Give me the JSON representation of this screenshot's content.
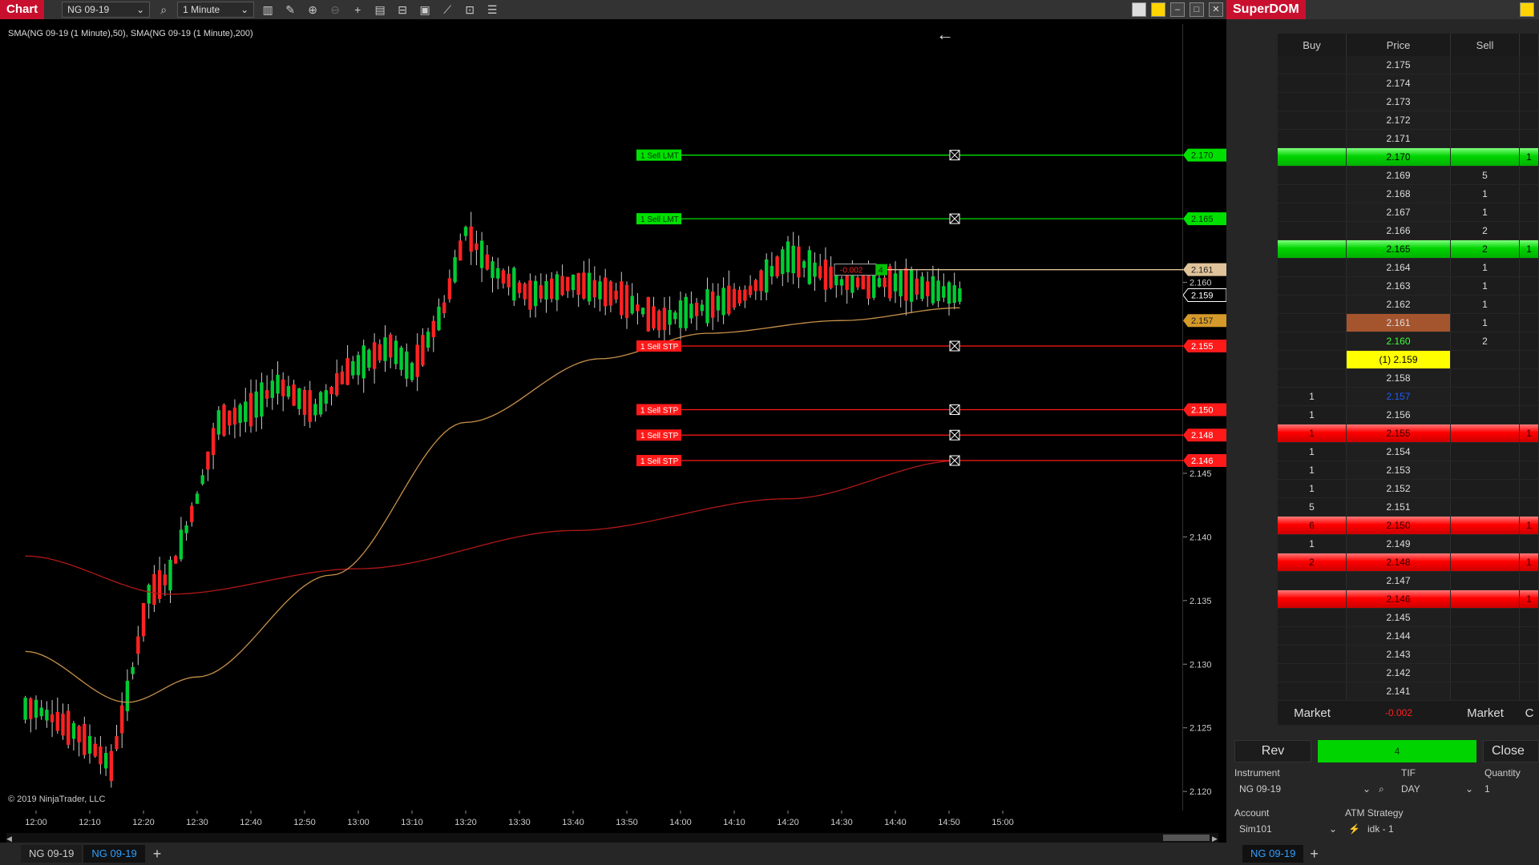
{
  "chart_window": {
    "title": "Chart",
    "instrument": "NG 09-19",
    "interval": "1 Minute",
    "indicator_label": "SMA(NG 09-19 (1 Minute),50), SMA(NG 09-19 (1 Minute),200)",
    "copyright": "© 2019 NinjaTrader, LLC",
    "tabs": [
      "NG 09-19",
      "NG 09-19"
    ],
    "tab_add": "+",
    "back_arrow": "←",
    "toolbar_icons": [
      "search-icon",
      "bar-chart-icon",
      "draw-icon",
      "zoom-in-icon",
      "zoom-out-icon",
      "crosshair-icon",
      "properties-icon",
      "template-icon",
      "data-box-icon",
      "strategy-icon",
      "indicator-icon",
      "list-icon"
    ]
  },
  "chart_data": {
    "type": "candlestick",
    "x_ticks": [
      "12:00",
      "12:10",
      "12:20",
      "12:30",
      "12:40",
      "12:50",
      "13:00",
      "13:10",
      "13:20",
      "13:30",
      "13:40",
      "13:50",
      "14:00",
      "14:10",
      "14:20",
      "14:30",
      "14:40",
      "14:50",
      "15:00"
    ],
    "y_ticks": [
      2.12,
      2.125,
      2.13,
      2.135,
      2.14,
      2.145,
      2.16
    ],
    "ylim": [
      2.1185,
      2.1803
    ],
    "up_color": "#00cc33",
    "down_color": "#ff2222",
    "sma50_color": "#c8914a",
    "sma200_color": "#b01818",
    "current_price": 2.159,
    "order_lines": [
      {
        "label": "1  Sell LMT",
        "price": "2.170",
        "color": "#00e000"
      },
      {
        "label": "1  Sell LMT",
        "price": "2.165",
        "color": "#00e000"
      },
      {
        "label": "1  Sell STP",
        "price": "2.155",
        "color": "#ff1a1a"
      },
      {
        "label": "1  Sell STP",
        "price": "2.150",
        "color": "#ff1a1a"
      },
      {
        "label": "1  Sell STP",
        "price": "2.148",
        "color": "#ff1a1a"
      },
      {
        "label": "1  Sell STP",
        "price": "2.146",
        "color": "#ff1a1a"
      }
    ],
    "position_line": {
      "pnl": "-0.002",
      "qty": "4",
      "price": "2.161",
      "color": "#e0c39a"
    },
    "price_labels": [
      {
        "price": "2.159",
        "kind": "last"
      },
      {
        "price": "2.157",
        "kind": "sma50"
      }
    ]
  },
  "superdom": {
    "title": "SuperDOM",
    "headers": {
      "buy": "Buy",
      "price": "Price",
      "sell": "Sell"
    },
    "rows": [
      {
        "buy": "",
        "price": "2.175",
        "sell": "",
        "style": ""
      },
      {
        "buy": "",
        "price": "2.174",
        "sell": "",
        "style": ""
      },
      {
        "buy": "",
        "price": "2.173",
        "sell": "",
        "style": ""
      },
      {
        "buy": "",
        "price": "2.172",
        "sell": "",
        "style": ""
      },
      {
        "buy": "",
        "price": "2.171",
        "sell": "",
        "style": ""
      },
      {
        "buy": "",
        "price": "2.170",
        "sell": "",
        "extra": "1",
        "style": "green"
      },
      {
        "buy": "",
        "price": "2.169",
        "sell": "5",
        "style": ""
      },
      {
        "buy": "",
        "price": "2.168",
        "sell": "1",
        "style": ""
      },
      {
        "buy": "",
        "price": "2.167",
        "sell": "1",
        "style": ""
      },
      {
        "buy": "",
        "price": "2.166",
        "sell": "2",
        "style": ""
      },
      {
        "buy": "",
        "price": "2.165",
        "sell": "2",
        "extra": "1",
        "style": "green"
      },
      {
        "buy": "",
        "price": "2.164",
        "sell": "1",
        "style": ""
      },
      {
        "buy": "",
        "price": "2.163",
        "sell": "1",
        "style": ""
      },
      {
        "buy": "",
        "price": "2.162",
        "sell": "1",
        "style": ""
      },
      {
        "buy": "",
        "price": "2.161",
        "sell": "1",
        "style": "brown"
      },
      {
        "buy": "",
        "price": "2.160",
        "sell": "2",
        "style": "txt-green"
      },
      {
        "buy": "",
        "price": "(1) 2.159",
        "sell": "",
        "style": "yellow"
      },
      {
        "buy": "",
        "price": "2.158",
        "sell": "",
        "style": ""
      },
      {
        "buy": "1",
        "price": "2.157",
        "sell": "",
        "style": "txt-blue"
      },
      {
        "buy": "1",
        "price": "2.156",
        "sell": "",
        "style": ""
      },
      {
        "buy": "1",
        "price": "2.155",
        "sell": "",
        "extra": "1",
        "style": "red"
      },
      {
        "buy": "1",
        "price": "2.154",
        "sell": "",
        "style": ""
      },
      {
        "buy": "1",
        "price": "2.153",
        "sell": "",
        "style": ""
      },
      {
        "buy": "1",
        "price": "2.152",
        "sell": "",
        "style": ""
      },
      {
        "buy": "5",
        "price": "2.151",
        "sell": "",
        "style": ""
      },
      {
        "buy": "6",
        "price": "2.150",
        "sell": "",
        "extra": "1",
        "style": "red"
      },
      {
        "buy": "1",
        "price": "2.149",
        "sell": "",
        "style": ""
      },
      {
        "buy": "2",
        "price": "2.148",
        "sell": "",
        "extra": "1",
        "style": "red"
      },
      {
        "buy": "",
        "price": "2.147",
        "sell": "",
        "style": ""
      },
      {
        "buy": "",
        "price": "2.146",
        "sell": "",
        "extra": "1",
        "style": "red"
      },
      {
        "buy": "",
        "price": "2.145",
        "sell": "",
        "style": ""
      },
      {
        "buy": "",
        "price": "2.144",
        "sell": "",
        "style": ""
      },
      {
        "buy": "",
        "price": "2.143",
        "sell": "",
        "style": ""
      },
      {
        "buy": "",
        "price": "2.142",
        "sell": "",
        "style": ""
      },
      {
        "buy": "",
        "price": "2.141",
        "sell": "",
        "style": ""
      }
    ],
    "footer": {
      "buy_market": "Market",
      "pnl": "-0.002",
      "sell_market": "Market",
      "extra": "C"
    },
    "rev_label": "Rev",
    "position_qty": "4",
    "close_label": "Close",
    "instrument_label": "Instrument",
    "tif_label": "TIF",
    "quantity_label": "Quantity",
    "instrument_value": "NG 09-19",
    "tif_value": "DAY",
    "quantity_value": "1",
    "account_label": "Account",
    "atm_label": "ATM Strategy",
    "account_value": "Sim101",
    "atm_value": "idk - 1",
    "tabs": [
      "NG 09-19"
    ],
    "tab_add": "+"
  }
}
